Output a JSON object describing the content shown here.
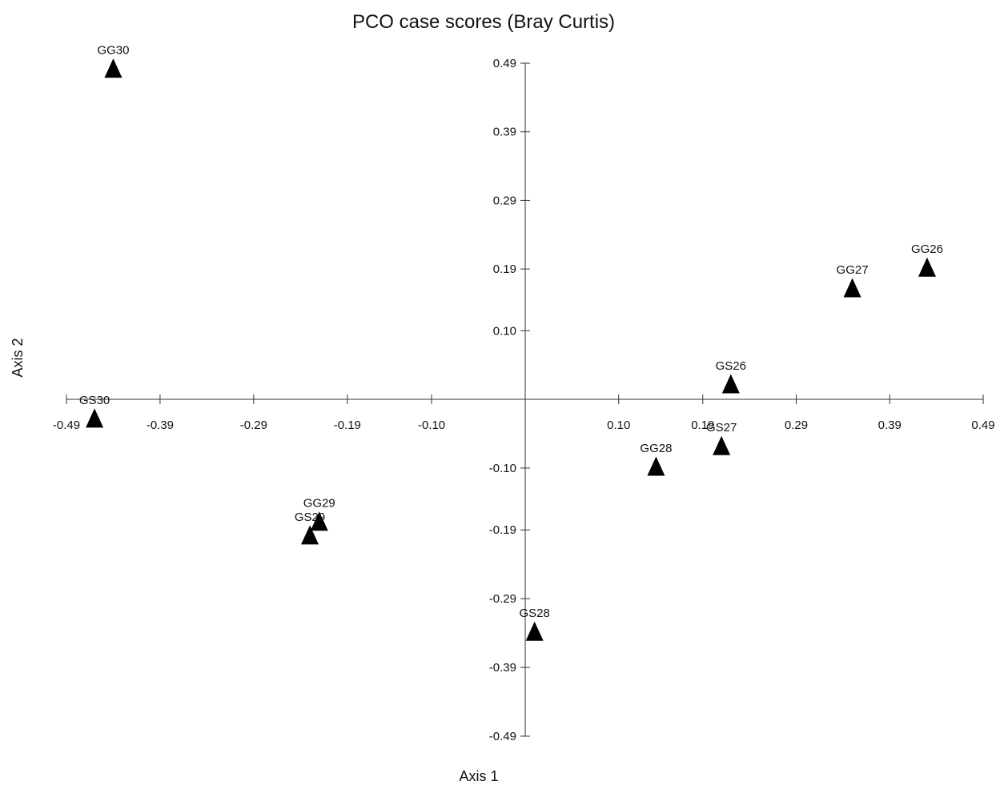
{
  "chart_data": {
    "type": "scatter",
    "title": "PCO case scores (Bray Curtis)",
    "xlabel": "Axis 1",
    "ylabel": "Axis 2",
    "xlim": [
      -0.49,
      0.49
    ],
    "ylim": [
      -0.49,
      0.49
    ],
    "x_ticks": [
      "-0.49",
      "-0.39",
      "-0.29",
      "-0.19",
      "-0.10",
      "0.10",
      "0.19",
      "0.29",
      "0.39",
      "0.49"
    ],
    "y_ticks": [
      "0.49",
      "0.39",
      "0.29",
      "0.19",
      "0.10",
      "-0.10",
      "-0.19",
      "-0.29",
      "-0.39",
      "-0.49"
    ],
    "x_tick_values": [
      -0.49,
      -0.39,
      -0.29,
      -0.19,
      -0.1,
      0.1,
      0.19,
      0.29,
      0.39,
      0.49
    ],
    "y_tick_values": [
      0.49,
      0.39,
      0.29,
      0.19,
      0.1,
      -0.1,
      -0.19,
      -0.29,
      -0.39,
      -0.49
    ],
    "marker": "filled-triangle",
    "marker_color": "#000000",
    "grid": false,
    "points": [
      {
        "label": "GG30",
        "x": -0.44,
        "y": 0.48
      },
      {
        "label": "GS30",
        "x": -0.46,
        "y": -0.03
      },
      {
        "label": "GG29",
        "x": -0.22,
        "y": -0.18
      },
      {
        "label": "GS29",
        "x": -0.23,
        "y": -0.2
      },
      {
        "label": "GS28",
        "x": 0.01,
        "y": -0.34
      },
      {
        "label": "GG28",
        "x": 0.14,
        "y": -0.1
      },
      {
        "label": "GS27",
        "x": 0.21,
        "y": -0.07
      },
      {
        "label": "GS26",
        "x": 0.22,
        "y": 0.02
      },
      {
        "label": "GG27",
        "x": 0.35,
        "y": 0.16
      },
      {
        "label": "GG26",
        "x": 0.43,
        "y": 0.19
      }
    ]
  }
}
